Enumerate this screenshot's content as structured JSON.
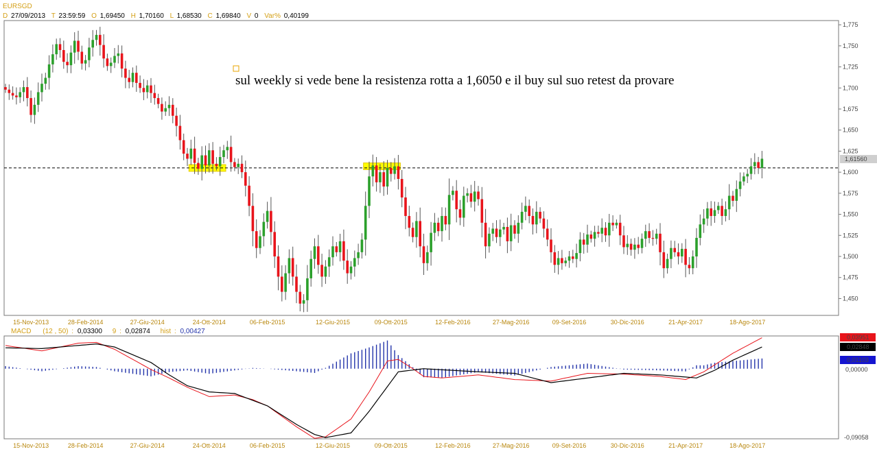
{
  "header": {
    "symbol": "EURSGD",
    "d_key": "D",
    "date": "27/09/2013",
    "t_key": "T",
    "time": "23:59:59",
    "o_key": "O",
    "open": "1,69450",
    "h_key": "H",
    "high": "1,70160",
    "l_key": "L",
    "low": "1,68530",
    "c_key": "C",
    "close": "1,69840",
    "v_key": "V",
    "volume": "0",
    "var_key": "Var%",
    "var": "0,40199"
  },
  "annotation": {
    "text": "sul weekly si vede bene la resistenza rotta a 1,6050 e il buy sul suo retest da provare"
  },
  "colors": {
    "up": "#2ca02c",
    "down": "#e8141b",
    "wick": "#555555",
    "highlight": "#ffff00",
    "highlight_border": "#e6c800",
    "macd_line": "#000000",
    "signal_line": "#e8141b",
    "hist": "#2233aa",
    "tick_text": "#b8860b"
  },
  "chart_data": [
    {
      "type": "candlestick",
      "title": "EURSGD",
      "ylim": [
        1.43,
        1.78
      ],
      "y_ticks": [
        "1,450",
        "1,475",
        "1,500",
        "1,525",
        "1,550",
        "1,575",
        "1,600",
        "1,625",
        "1,650",
        "1,675",
        "1,700",
        "1,725",
        "1,750",
        "1,775"
      ],
      "y_tick_values": [
        1.45,
        1.475,
        1.5,
        1.525,
        1.55,
        1.575,
        1.6,
        1.625,
        1.65,
        1.675,
        1.7,
        1.725,
        1.75,
        1.775
      ],
      "x_ticks": [
        "15-Nov-2013",
        "28-Feb-2014",
        "27-Giu-2014",
        "24-Ott-2014",
        "06-Feb-2015",
        "12-Giu-2015",
        "09-Ott-2015",
        "12-Feb-2016",
        "27-Mag-2016",
        "09-Set-2016",
        "30-Dic-2016",
        "21-Apr-2017",
        "18-Ago-2017"
      ],
      "x_tick_index": [
        7,
        22,
        39,
        56,
        72,
        90,
        106,
        123,
        139,
        155,
        171,
        187,
        204
      ],
      "resistance_level": 1.6051,
      "last_price_label": "1,61560",
      "last_price": 1.6156,
      "highlight_zones": [
        {
          "from": 51,
          "to": 60,
          "low": 1.601,
          "high": 1.609
        },
        {
          "from": 99,
          "to": 108,
          "low": 1.603,
          "high": 1.611
        }
      ],
      "closes": [
        1.698,
        1.694,
        1.691,
        1.689,
        1.695,
        1.701,
        1.688,
        1.668,
        1.68,
        1.695,
        1.705,
        1.712,
        1.728,
        1.74,
        1.752,
        1.745,
        1.731,
        1.727,
        1.742,
        1.756,
        1.743,
        1.729,
        1.733,
        1.748,
        1.757,
        1.763,
        1.751,
        1.735,
        1.726,
        1.73,
        1.738,
        1.741,
        1.723,
        1.712,
        1.707,
        1.718,
        1.706,
        1.7,
        1.695,
        1.703,
        1.694,
        1.688,
        1.681,
        1.672,
        1.676,
        1.68,
        1.667,
        1.655,
        1.638,
        1.622,
        1.616,
        1.628,
        1.611,
        1.604,
        1.62,
        1.608,
        1.626,
        1.61,
        1.607,
        1.618,
        1.626,
        1.63,
        1.612,
        1.606,
        1.61,
        1.6,
        1.584,
        1.56,
        1.53,
        1.51,
        1.524,
        1.541,
        1.554,
        1.529,
        1.5,
        1.476,
        1.458,
        1.48,
        1.498,
        1.476,
        1.458,
        1.444,
        1.448,
        1.474,
        1.497,
        1.512,
        1.49,
        1.476,
        1.488,
        1.499,
        1.512,
        1.505,
        1.518,
        1.495,
        1.48,
        1.488,
        1.498,
        1.505,
        1.52,
        1.56,
        1.595,
        1.608,
        1.588,
        1.6,
        1.583,
        1.605,
        1.598,
        1.607,
        1.592,
        1.57,
        1.548,
        1.534,
        1.523,
        1.542,
        1.512,
        1.492,
        1.505,
        1.528,
        1.54,
        1.53,
        1.548,
        1.538,
        1.573,
        1.578,
        1.556,
        1.546,
        1.572,
        1.575,
        1.565,
        1.577,
        1.568,
        1.54,
        1.512,
        1.527,
        1.533,
        1.523,
        1.532,
        1.535,
        1.518,
        1.537,
        1.527,
        1.54,
        1.553,
        1.56,
        1.548,
        1.538,
        1.553,
        1.545,
        1.533,
        1.52,
        1.505,
        1.49,
        1.498,
        1.492,
        1.495,
        1.5,
        1.497,
        1.504,
        1.52,
        1.514,
        1.526,
        1.521,
        1.529,
        1.527,
        1.534,
        1.525,
        1.54,
        1.537,
        1.54,
        1.525,
        1.511,
        1.515,
        1.508,
        1.514,
        1.51,
        1.521,
        1.53,
        1.522,
        1.521,
        1.527,
        1.505,
        1.486,
        1.497,
        1.51,
        1.505,
        1.5,
        1.509,
        1.49,
        1.486,
        1.5,
        1.522,
        1.538,
        1.545,
        1.557,
        1.548,
        1.555,
        1.56,
        1.548,
        1.556,
        1.572,
        1.566,
        1.58,
        1.589,
        1.595,
        1.598,
        1.607,
        1.612,
        1.605,
        1.616
      ],
      "x_range": [
        0,
        210
      ]
    },
    {
      "type": "line",
      "title": "MACD",
      "params": "(12 , 50)",
      "macd_value": "0,03300",
      "signal_period": "9",
      "signal_value": "0,02874",
      "hist_label": "hist",
      "hist_value": "0,00427",
      "ylim": [
        -0.09058,
        0.0423
      ],
      "axis_labels": {
        "top": "0,03951",
        "mid": "0,02848",
        "hist": "0,01103",
        "zero": "0,00000",
        "bottom": "-0,09058"
      },
      "axis_values": {
        "top": 0.03951,
        "mid": 0.02848,
        "hist": 0.01103,
        "zero": 0.0,
        "bottom": -0.09058
      },
      "x_ticks": [
        "15-Nov-2013",
        "28-Feb-2014",
        "27-Giu-2014",
        "24-Ott-2014",
        "06-Feb-2015",
        "12-Giu-2015",
        "09-Ott-2015",
        "12-Feb-2016",
        "27-Mag-2016",
        "09-Set-2016",
        "30-Dic-2016",
        "21-Apr-2017",
        "18-Ago-2017"
      ],
      "x_tick_index": [
        7,
        22,
        39,
        56,
        72,
        90,
        106,
        123,
        139,
        155,
        171,
        187,
        204
      ],
      "series": [
        {
          "role": "macd",
          "x": [
            0,
            10,
            20,
            25,
            30,
            40,
            45,
            50,
            56,
            63,
            72,
            80,
            85,
            88,
            95,
            100,
            108,
            115,
            130,
            140,
            150,
            160,
            170,
            180,
            190,
            195,
            200,
            208
          ],
          "y": [
            0.027,
            0.026,
            0.03,
            0.032,
            0.028,
            0.008,
            -0.008,
            -0.022,
            -0.03,
            -0.032,
            -0.048,
            -0.072,
            -0.085,
            -0.089,
            -0.083,
            -0.055,
            -0.004,
            0.0,
            -0.004,
            -0.006,
            -0.018,
            -0.012,
            -0.006,
            -0.008,
            -0.012,
            -0.002,
            0.011,
            0.028
          ]
        },
        {
          "role": "signal",
          "x": [
            0,
            10,
            20,
            25,
            30,
            40,
            45,
            50,
            56,
            63,
            68,
            72,
            80,
            85,
            88,
            95,
            100,
            105,
            108,
            112,
            115,
            120,
            130,
            140,
            150,
            160,
            170,
            180,
            187,
            192,
            200,
            208
          ],
          "y": [
            0.03,
            0.023,
            0.033,
            0.034,
            0.025,
            -0.001,
            -0.012,
            -0.024,
            -0.036,
            -0.034,
            -0.04,
            -0.048,
            -0.075,
            -0.09,
            -0.088,
            -0.065,
            -0.03,
            0.01,
            0.012,
            0.0,
            -0.01,
            -0.012,
            -0.008,
            -0.014,
            -0.016,
            -0.006,
            -0.007,
            -0.01,
            -0.014,
            -0.004,
            0.02,
            0.04
          ]
        }
      ],
      "x_range": [
        0,
        210
      ]
    }
  ]
}
